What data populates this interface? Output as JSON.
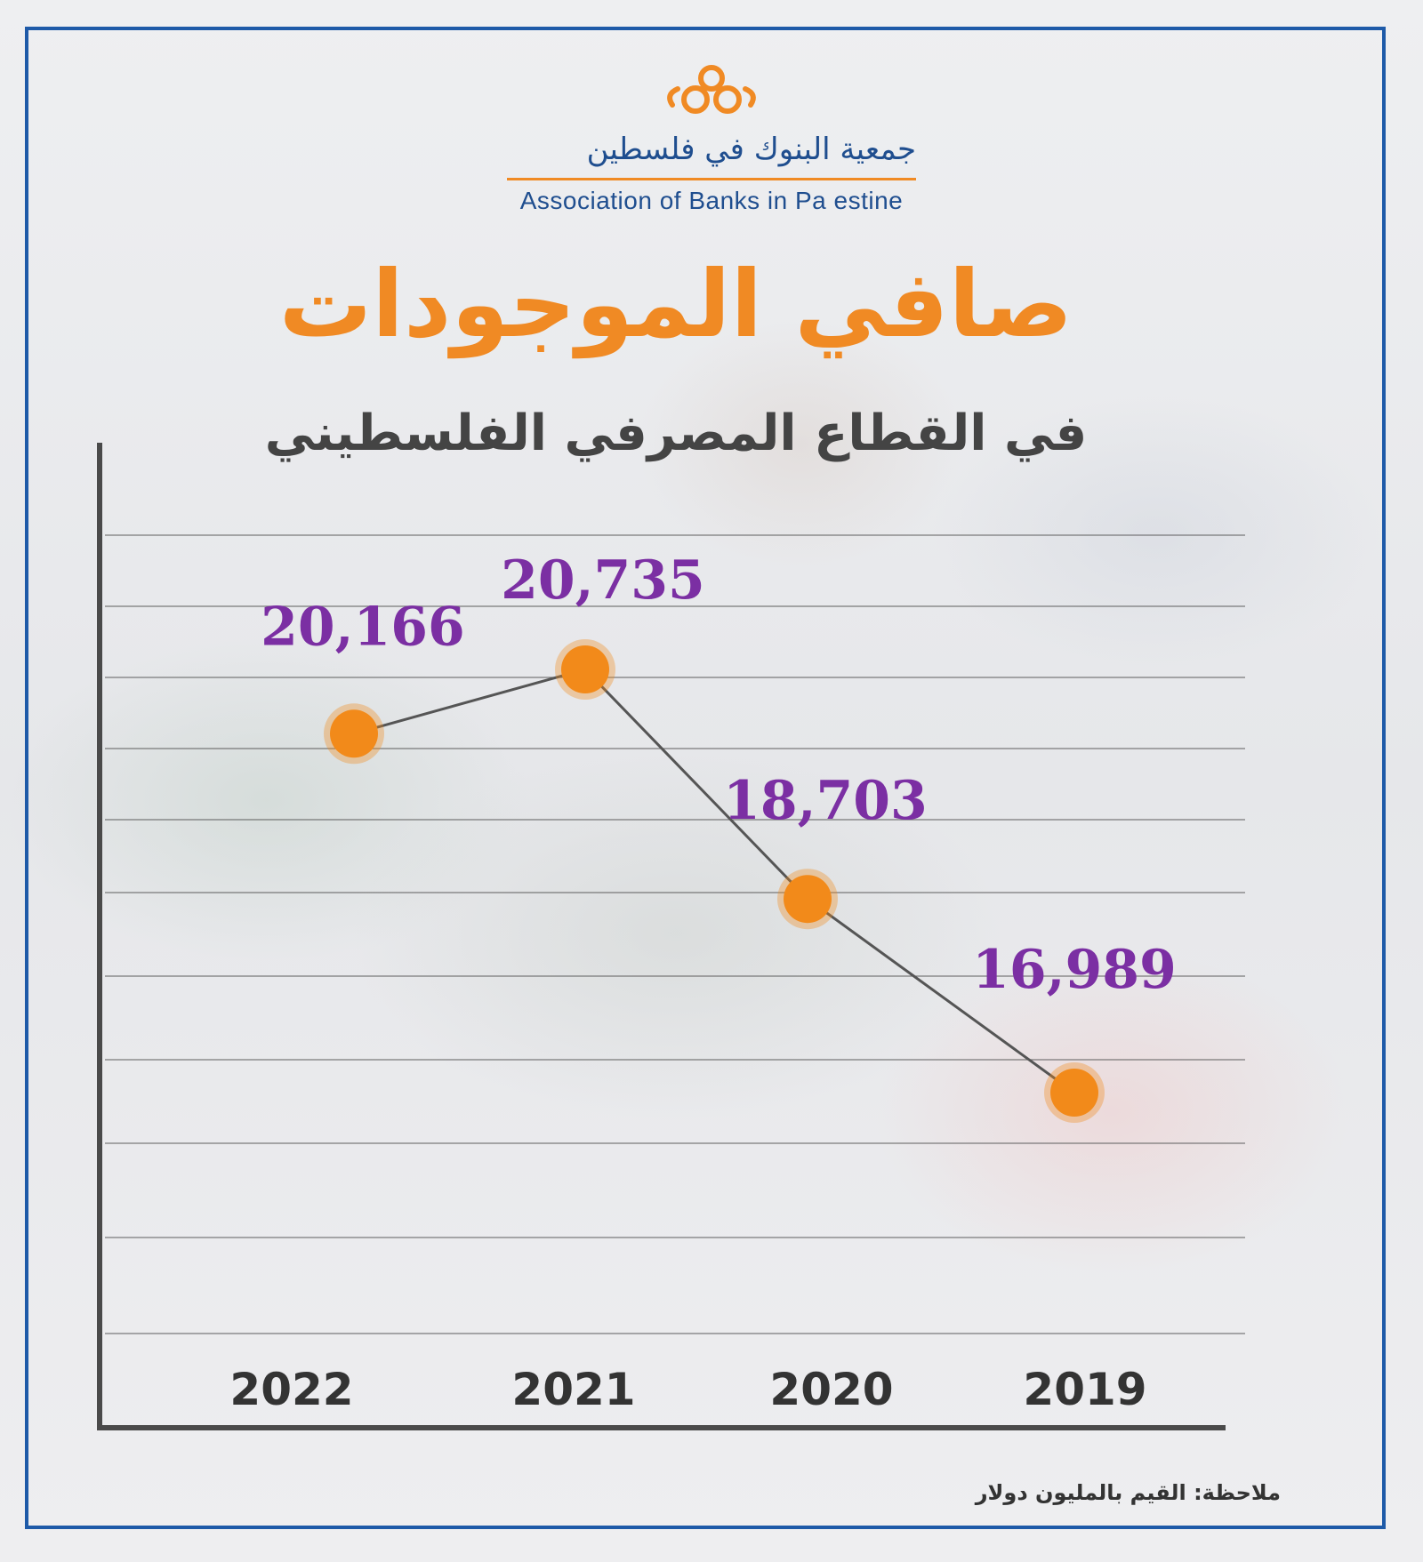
{
  "logo": {
    "arabic": "جمعية البنوك في فلسطين",
    "english": "Association of Banks in Pa estine",
    "colors": {
      "orange": "#f08a24",
      "blue": "#1f4e8f"
    }
  },
  "header": {
    "title": "صافي الموجودات",
    "subtitle": "في القطاع المصرفي الفلسطيني"
  },
  "note": "ملاحظة: القيم بالمليون دولار",
  "colors": {
    "marker": "#f28a1a",
    "value_label": "#7b2fa3",
    "line": "#555555",
    "axis": "#4a4a4a",
    "frame": "#1e5aa8"
  },
  "chart_data": {
    "type": "line",
    "categories": [
      "2022",
      "2021",
      "2020",
      "2019"
    ],
    "series": [
      {
        "values": [
          20166,
          20735,
          18703,
          16989
        ]
      }
    ],
    "data_labels": [
      "20,166",
      "20,735",
      "18,703",
      "16,989"
    ],
    "title": "صافي الموجودات",
    "subtitle": "في القطاع المصرفي الفلسطيني",
    "xlabel": "",
    "ylabel": "",
    "grid": true,
    "y_axis_ticks_shown": false
  }
}
